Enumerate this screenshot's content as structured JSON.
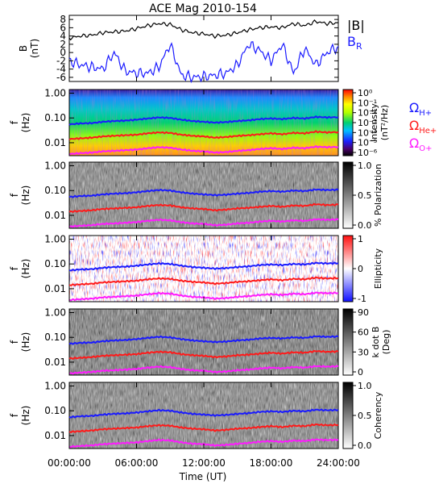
{
  "figure": {
    "title": "ACE Mag 2010-154",
    "xlabel": "Time (UT)",
    "x_ticks": [
      "00:00:00",
      "06:00:00",
      "12:00:00",
      "18:00:00",
      "24:00:00"
    ],
    "x_range_hours": [
      0,
      24
    ]
  },
  "legend": {
    "babs": "|B|",
    "br": "B",
    "br_sub": "R",
    "h": "Ω",
    "h_sub": "H+",
    "he": "Ω",
    "he_sub": "He+",
    "o": "Ω",
    "o_sub": "O+",
    "colors": {
      "babs": "#000000",
      "br": "#1a1aff",
      "h": "#1a1aff",
      "he": "#ff1a1a",
      "o": "#ff1aff"
    }
  },
  "freq_axis": {
    "label": "f",
    "unit": "(Hz)",
    "ticks": [
      "1.00",
      "0.10",
      "0.01"
    ]
  },
  "chart_data": [
    {
      "type": "line",
      "ylabel": "B",
      "yunit": "(nT)",
      "ylim": [
        -7,
        9
      ],
      "y_ticks": [
        "8",
        "6",
        "4",
        "2",
        "0",
        "-2",
        "-4",
        "-6"
      ],
      "x": [
        0,
        1,
        2,
        3,
        4,
        5,
        6,
        7,
        8,
        9,
        10,
        11,
        12,
        13,
        14,
        15,
        16,
        17,
        18,
        19,
        20,
        21,
        22,
        23,
        24
      ],
      "series": [
        {
          "name": "|B|",
          "values": [
            3.5,
            4.0,
            4.2,
            4.8,
            5.0,
            5.2,
            5.8,
            6.5,
            7.0,
            6.8,
            5.5,
            4.8,
            4.5,
            4.0,
            4.2,
            4.8,
            5.5,
            6.0,
            6.2,
            6.0,
            7.0,
            6.5,
            7.5,
            7.0,
            7.2
          ]
        },
        {
          "name": "BR",
          "values": [
            -2.0,
            -3.0,
            -3.5,
            -4.0,
            0.0,
            -4.5,
            -5.0,
            -5.0,
            -3.5,
            2.0,
            -5.5,
            -6.0,
            -5.8,
            -5.5,
            -5.0,
            -3.0,
            2.0,
            0.5,
            -2.0,
            2.0,
            -5.0,
            1.0,
            -3.0,
            0.0,
            1.5
          ]
        }
      ]
    },
    {
      "type": "heatmap",
      "label": "Intensity",
      "unit": "(nT²/Hz)",
      "colorbar_ticks": [
        "10⁰",
        "10⁻¹",
        "10⁻²",
        "10⁻³",
        "10⁻⁴",
        "10⁻⁵",
        "10⁻⁶"
      ],
      "colorbar_range": [
        -6,
        0
      ]
    },
    {
      "type": "heatmap",
      "label": "% Polarization",
      "unit": "",
      "colorbar_ticks": [
        "1.0",
        "0.5",
        "0.0"
      ],
      "colorbar_range": [
        0,
        1
      ]
    },
    {
      "type": "heatmap",
      "label": "Ellipticity",
      "unit": "",
      "colorbar_ticks": [
        "1",
        "0",
        "-1"
      ],
      "colorbar_range": [
        -1,
        1
      ]
    },
    {
      "type": "heatmap",
      "label": "k dot B",
      "unit": "(Deg)",
      "colorbar_ticks": [
        "90",
        "60",
        "30",
        "0"
      ],
      "colorbar_range": [
        0,
        90
      ]
    },
    {
      "type": "heatmap",
      "label": "Coherency",
      "unit": "",
      "colorbar_ticks": [
        "1.0",
        "0.5",
        "0.0"
      ],
      "colorbar_range": [
        0,
        1
      ]
    }
  ],
  "gyro_lines": {
    "x": [
      0,
      1,
      2,
      3,
      4,
      5,
      6,
      7,
      8,
      9,
      10,
      11,
      12,
      13,
      14,
      15,
      16,
      17,
      18,
      19,
      20,
      21,
      22,
      23,
      24
    ],
    "h_hz": [
      0.055,
      0.06,
      0.062,
      0.07,
      0.075,
      0.078,
      0.085,
      0.095,
      0.105,
      0.1,
      0.085,
      0.075,
      0.07,
      0.065,
      0.068,
      0.075,
      0.08,
      0.09,
      0.095,
      0.09,
      0.1,
      0.095,
      0.11,
      0.105,
      0.108
    ],
    "he_hz": [
      0.014,
      0.015,
      0.016,
      0.018,
      0.019,
      0.02,
      0.021,
      0.024,
      0.026,
      0.025,
      0.021,
      0.019,
      0.018,
      0.016,
      0.017,
      0.019,
      0.02,
      0.022,
      0.024,
      0.022,
      0.025,
      0.024,
      0.028,
      0.026,
      0.027
    ],
    "o_hz": [
      0.0035,
      0.0038,
      0.004,
      0.0045,
      0.0047,
      0.005,
      0.0053,
      0.006,
      0.0066,
      0.0063,
      0.0053,
      0.0047,
      0.0045,
      0.004,
      0.0042,
      0.0047,
      0.005,
      0.0056,
      0.006,
      0.0056,
      0.0063,
      0.006,
      0.0069,
      0.0066,
      0.0068
    ]
  }
}
